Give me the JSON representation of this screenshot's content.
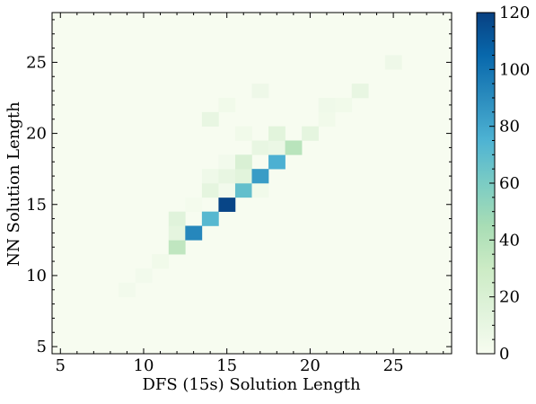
{
  "chart_data": {
    "type": "heatmap",
    "title": "",
    "xlabel": "DFS (15s) Solution Length",
    "ylabel": "NN Solution Length",
    "xlim": [
      4.5,
      28.5
    ],
    "ylim": [
      4.5,
      28.5
    ],
    "xticks": [
      5,
      10,
      15,
      20,
      25
    ],
    "yticks": [
      5,
      10,
      15,
      20,
      25
    ],
    "colorbar": {
      "min": 0,
      "max": 120,
      "ticks": [
        0,
        20,
        40,
        60,
        80,
        100,
        120
      ],
      "colormap": "GnBu"
    },
    "cells": [
      {
        "x": 9,
        "y": 9,
        "value": 3
      },
      {
        "x": 10,
        "y": 10,
        "value": 3
      },
      {
        "x": 11,
        "y": 11,
        "value": 4
      },
      {
        "x": 12,
        "y": 12,
        "value": 35
      },
      {
        "x": 12,
        "y": 13,
        "value": 12
      },
      {
        "x": 12,
        "y": 14,
        "value": 15
      },
      {
        "x": 13,
        "y": 13,
        "value": 92
      },
      {
        "x": 13,
        "y": 15,
        "value": 2
      },
      {
        "x": 14,
        "y": 14,
        "value": 72
      },
      {
        "x": 14,
        "y": 16,
        "value": 12
      },
      {
        "x": 14,
        "y": 17,
        "value": 5
      },
      {
        "x": 14,
        "y": 21,
        "value": 10
      },
      {
        "x": 15,
        "y": 15,
        "value": 118
      },
      {
        "x": 15,
        "y": 16,
        "value": 3
      },
      {
        "x": 15,
        "y": 17,
        "value": 10
      },
      {
        "x": 15,
        "y": 18,
        "value": 3
      },
      {
        "x": 15,
        "y": 22,
        "value": 4
      },
      {
        "x": 16,
        "y": 16,
        "value": 68
      },
      {
        "x": 16,
        "y": 17,
        "value": 14
      },
      {
        "x": 16,
        "y": 18,
        "value": 20
      },
      {
        "x": 16,
        "y": 20,
        "value": 4
      },
      {
        "x": 17,
        "y": 16,
        "value": 4
      },
      {
        "x": 17,
        "y": 17,
        "value": 84
      },
      {
        "x": 17,
        "y": 19,
        "value": 10
      },
      {
        "x": 17,
        "y": 23,
        "value": 6
      },
      {
        "x": 18,
        "y": 18,
        "value": 76
      },
      {
        "x": 18,
        "y": 19,
        "value": 8
      },
      {
        "x": 18,
        "y": 20,
        "value": 14
      },
      {
        "x": 19,
        "y": 19,
        "value": 38
      },
      {
        "x": 20,
        "y": 20,
        "value": 12
      },
      {
        "x": 21,
        "y": 21,
        "value": 4
      },
      {
        "x": 21,
        "y": 22,
        "value": 5
      },
      {
        "x": 22,
        "y": 22,
        "value": 4
      },
      {
        "x": 23,
        "y": 23,
        "value": 10
      },
      {
        "x": 25,
        "y": 25,
        "value": 6
      }
    ]
  }
}
